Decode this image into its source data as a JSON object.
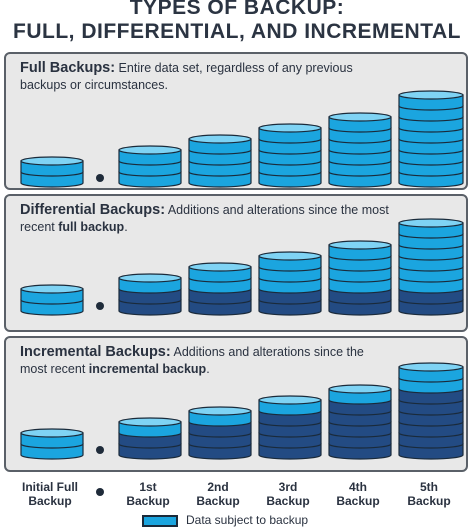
{
  "title": {
    "line1": "TYPES OF BACKUP:",
    "line2": "FULL, DIFFERENTIAL, AND INCREMENTAL"
  },
  "colors": {
    "data": "#1ba5df",
    "data_top": "#7fd3f4",
    "stored": "#234b83",
    "stored_top": "#3d6aa6",
    "edge": "#1a2a3a",
    "panel_bg": "#e8e8e8"
  },
  "panels": [
    {
      "heading": "Full Backups:",
      "text_before": " Entire data set, regardless of any previous backups or circumstances.",
      "emphasis": "",
      "text_after": "",
      "stacks": [
        {
          "data": 2,
          "stored": 0
        },
        {
          "data": 3,
          "stored": 0
        },
        {
          "data": 4,
          "stored": 0
        },
        {
          "data": 5,
          "stored": 0
        },
        {
          "data": 6,
          "stored": 0
        },
        {
          "data": 8,
          "stored": 0
        }
      ]
    },
    {
      "heading": "Differential Backups:",
      "text_before": " Additions and alterations since the most recent ",
      "emphasis": "full backup",
      "text_after": ".",
      "stacks": [
        {
          "data": 2,
          "stored": 0
        },
        {
          "data": 1,
          "stored": 2
        },
        {
          "data": 2,
          "stored": 2
        },
        {
          "data": 3,
          "stored": 2
        },
        {
          "data": 4,
          "stored": 2
        },
        {
          "data": 6,
          "stored": 2
        }
      ]
    },
    {
      "heading": "Incremental Backups:",
      "text_before": " Additions and alterations since the most recent ",
      "emphasis": "incremental backup",
      "text_after": ".",
      "stacks": [
        {
          "data": 2,
          "stored": 0
        },
        {
          "data": 1,
          "stored": 2
        },
        {
          "data": 1,
          "stored": 3
        },
        {
          "data": 1,
          "stored": 4
        },
        {
          "data": 1,
          "stored": 5
        },
        {
          "data": 2,
          "stored": 6
        }
      ]
    }
  ],
  "columns": [
    {
      "line1": "Initial Full",
      "line2": "Backup"
    },
    {
      "line1": "1st",
      "line2": "Backup"
    },
    {
      "line1": "2nd",
      "line2": "Backup"
    },
    {
      "line1": "3rd",
      "line2": "Backup"
    },
    {
      "line1": "4th",
      "line2": "Backup"
    },
    {
      "line1": "5th",
      "line2": "Backup"
    }
  ],
  "legend": {
    "label": "Data subject to backup"
  }
}
